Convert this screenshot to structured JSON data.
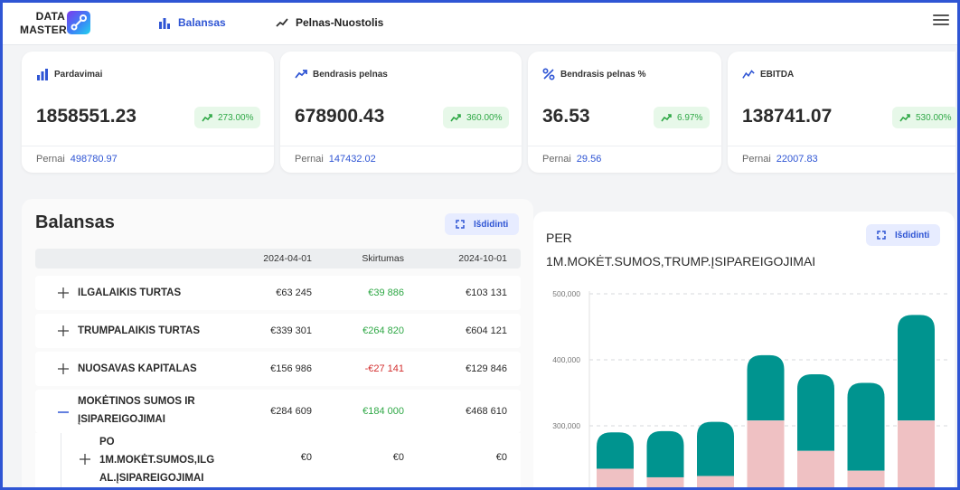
{
  "brand": {
    "line1": "DATA",
    "line2": "MASTER"
  },
  "nav": {
    "tabs": [
      {
        "label": "Balansas",
        "active": true,
        "icon": "bar-chart-icon"
      },
      {
        "label": "Pelnas-Nuostolis",
        "active": false,
        "icon": "trend-line-icon"
      }
    ],
    "menu_icon": "hamburger-menu-icon"
  },
  "kpis": [
    {
      "title": "Pardavimai",
      "icon": "bar-chart-icon",
      "value": "1858551.23",
      "change": "273.00%",
      "prev_label": "Pernai",
      "prev_value": "498780.97"
    },
    {
      "title": "Bendrasis pelnas",
      "icon": "trending-up-icon",
      "value": "678900.43",
      "change": "360.00%",
      "prev_label": "Pernai",
      "prev_value": "147432.02"
    },
    {
      "title": "Bendrasis pelnas %",
      "icon": "percent-icon",
      "value": "36.53",
      "change": "6.97%",
      "prev_label": "Pernai",
      "prev_value": "29.56"
    },
    {
      "title": "EBITDA",
      "icon": "line-chart-icon",
      "value": "138741.07",
      "change": "530.00%",
      "prev_label": "Pernai",
      "prev_value": "22007.83"
    }
  ],
  "balance": {
    "title": "Balansas",
    "expand_label": "Išdidinti",
    "columns": [
      "2024-04-01",
      "Skirtumas",
      "2024-10-01"
    ],
    "rows": [
      {
        "name": "ILGALAIKIS TURTAS",
        "v1": "€63 245",
        "diff": "€39 886",
        "v2": "€103 131",
        "diff_sign": "pos",
        "expanded": false
      },
      {
        "name": "TRUMPALAIKIS TURTAS",
        "v1": "€339 301",
        "diff": "€264 820",
        "v2": "€604 121",
        "diff_sign": "pos",
        "expanded": false
      },
      {
        "name": "NUOSAVAS KAPITALAS",
        "v1": "€156 986",
        "diff": "-€27 141",
        "v2": "€129 846",
        "diff_sign": "neg",
        "expanded": false
      },
      {
        "name_line1": "MOKĖTINOS SUMOS IR",
        "name_line2": "ĮSIPAREIGOJIMAI",
        "v1": "€284 609",
        "diff": "€184 000",
        "v2": "€468 610",
        "diff_sign": "pos",
        "expanded": true
      }
    ],
    "subrow": {
      "name_line1": "PO",
      "name_line2": "1M.MOKĖT.SUMOS,ILG",
      "name_line3": "AL.ĮSIPAREIGOJIMAI",
      "v1": "€0",
      "diff": "€0",
      "v2": "€0"
    }
  },
  "chart_panel": {
    "title_line1": "PER",
    "title_line2": "1M.MOKĖT.SUMOS,TRUMP.ĮSIPAREIGOJIMAI",
    "expand_label": "Išdidinti"
  },
  "chart_data": {
    "type": "bar",
    "stacked": true,
    "y_ticks": [
      "500,000",
      "400,000",
      "300,000"
    ],
    "ylim_visible": [
      220000,
      520000
    ],
    "series": [
      {
        "values": [
          220000,
          220000,
          220000,
          220000,
          220000,
          220000,
          220000
        ],
        "color": "#efc1c3"
      },
      {
        "values": [
          235000,
          222000,
          224000,
          308000,
          262000,
          232000,
          308000
        ],
        "color": "#efc1c3"
      },
      {
        "values": [
          290000,
          292000,
          306000,
          407000,
          378000,
          365000,
          468000
        ],
        "color": "#00948f"
      }
    ],
    "colors": {
      "teal": "#00948f",
      "pink": "#efc1c3"
    },
    "grid": true
  }
}
